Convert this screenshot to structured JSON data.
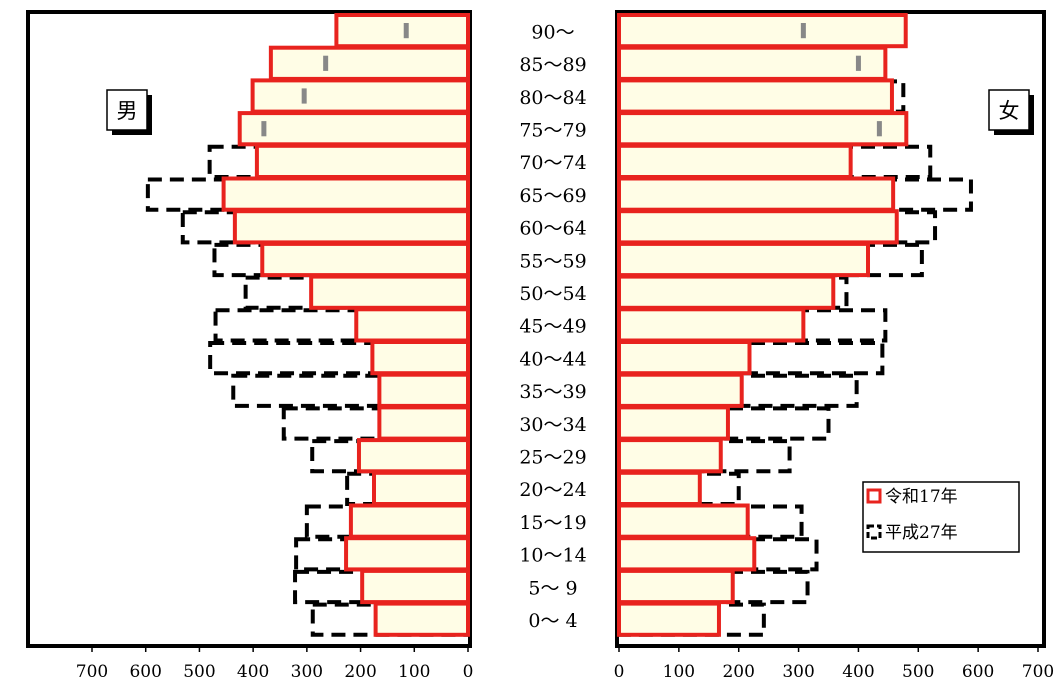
{
  "chart_data": {
    "type": "bar",
    "orientation": "horizontal-pyramid",
    "categories": [
      "0～ 4",
      "5～ 9",
      "10～14",
      "15～19",
      "20～24",
      "25～29",
      "30～34",
      "35～39",
      "40～44",
      "45～49",
      "50～54",
      "55～59",
      "60～64",
      "65～69",
      "70～74",
      "75～79",
      "80～84",
      "85～89",
      "90～"
    ],
    "panels": [
      {
        "label": "男",
        "xlim": [
          700,
          0
        ],
        "ticks": [
          "700",
          "600",
          "500",
          "400",
          "300",
          "200",
          "100",
          "0"
        ]
      },
      {
        "label": "女",
        "xlim": [
          0,
          700
        ],
        "ticks": [
          "0",
          "100",
          "200",
          "300",
          "400",
          "500",
          "600",
          "700"
        ]
      }
    ],
    "series": [
      {
        "name": "令和17年",
        "color": "#e8231e",
        "fill": "#fffde6",
        "male": [
          172,
          197,
          227,
          218,
          175,
          203,
          165,
          165,
          178,
          208,
          292,
          383,
          434,
          455,
          393,
          425,
          401,
          367,
          245
        ],
        "female": [
          167,
          190,
          226,
          215,
          135,
          170,
          182,
          205,
          218,
          308,
          358,
          416,
          464,
          458,
          387,
          480,
          456,
          445,
          479
        ]
      },
      {
        "name": "平成27年",
        "color": "#000000",
        "male": [
          289,
          322,
          320,
          300,
          225,
          290,
          343,
          437,
          480,
          470,
          414,
          472,
          531,
          596,
          481,
          380,
          305,
          265,
          115
        ],
        "female": [
          242,
          315,
          330,
          305,
          200,
          285,
          350,
          397,
          440,
          445,
          380,
          506,
          528,
          588,
          520,
          435,
          475,
          400,
          308
        ]
      }
    ],
    "legend_position": "bottom-right"
  }
}
